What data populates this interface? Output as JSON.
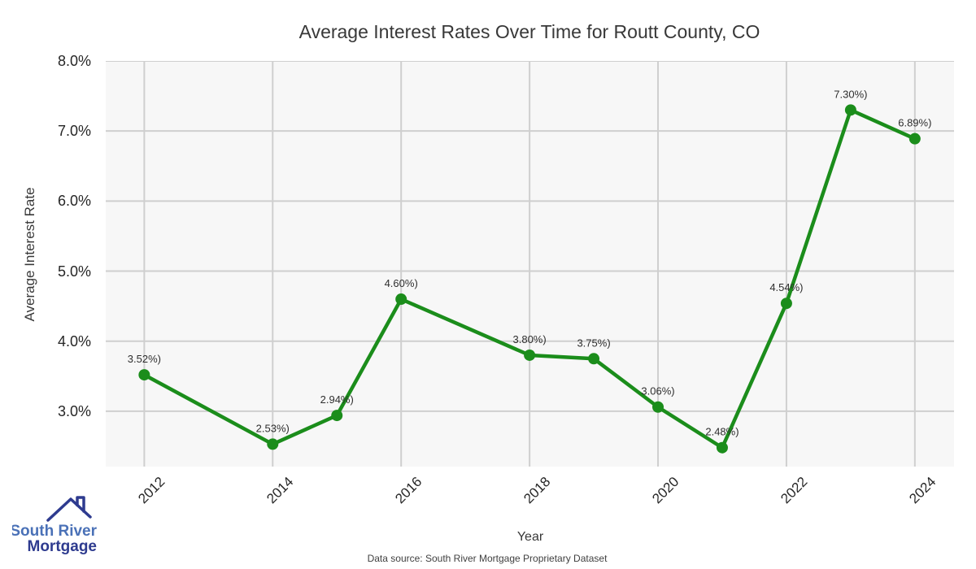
{
  "chart_data": {
    "type": "line",
    "title": "Average Interest Rates Over Time for Routt County, CO",
    "xlabel": "Year",
    "ylabel": "Average Interest Rate",
    "x": [
      2012,
      2014,
      2015,
      2016,
      2018,
      2019,
      2020,
      2021,
      2022,
      2023,
      2024
    ],
    "values": [
      3.52,
      2.53,
      2.94,
      4.6,
      3.8,
      3.75,
      3.06,
      2.48,
      4.54,
      7.3,
      6.89
    ],
    "point_labels": [
      "3.52%)",
      "2.53%)",
      "2.94%)",
      "4.60%)",
      "3.80%)",
      "3.75%)",
      "3.06%)",
      "2.48%)",
      "4.54%)",
      "7.30%)",
      "6.89%)"
    ],
    "xticks": [
      {
        "label": "2012",
        "value": 2012
      },
      {
        "label": "2014",
        "value": 2014
      },
      {
        "label": "2016",
        "value": 2016
      },
      {
        "label": "2018",
        "value": 2018
      },
      {
        "label": "2020",
        "value": 2020
      },
      {
        "label": "2022",
        "value": 2022
      },
      {
        "label": "2024",
        "value": 2024
      }
    ],
    "yticks": [
      {
        "label": "8.0%",
        "value": 8.0
      },
      {
        "label": "7.0%",
        "value": 7.0
      },
      {
        "label": "6.0%",
        "value": 6.0
      },
      {
        "label": "5.0%",
        "value": 5.0
      },
      {
        "label": "4.0%",
        "value": 4.0
      },
      {
        "label": "3.0%",
        "value": 3.0
      }
    ],
    "xlim": [
      2011.4,
      2024.61
    ],
    "ylim": [
      2.21,
      8.0
    ],
    "grid": true,
    "legend": "none",
    "line_color": "#1b8d1b",
    "marker_color": "#1b8d1b",
    "grid_color": "#cfcfcf",
    "plot_bg_color": "#f7f7f7",
    "label_color": "#2e2e2e"
  },
  "footer": {
    "source_text": "Data source: South River Mortgage Proprietary Dataset"
  },
  "logo": {
    "line1": "South River",
    "line2": "Mortgage",
    "color_primary": "#4a71b7",
    "color_secondary": "#2e3b8f"
  }
}
